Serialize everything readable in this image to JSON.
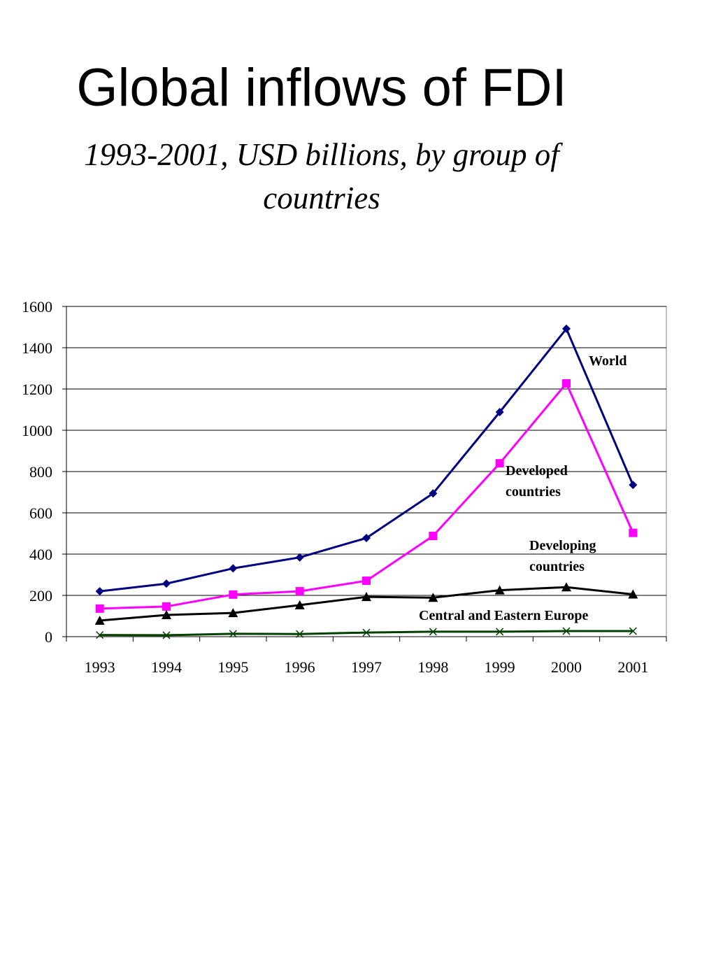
{
  "chart_data": {
    "type": "line",
    "title": "Global inflows of FDI",
    "subtitle": "1993-2001, USD billions, by group of countries",
    "xlabel": "",
    "ylabel": "",
    "x": [
      "1993",
      "1994",
      "1995",
      "1996",
      "1997",
      "1998",
      "1999",
      "2000",
      "2001"
    ],
    "ylim": [
      0,
      1600
    ],
    "yticks": [
      "0",
      "200",
      "400",
      "600",
      "800",
      "1000",
      "1200",
      "1400",
      "1600"
    ],
    "grid": "horizontal",
    "series": [
      {
        "name": "World",
        "values": [
          220,
          257,
          331,
          384,
          478,
          694,
          1088,
          1492,
          735
        ],
        "color": "#000080",
        "marker": "diamond"
      },
      {
        "name": "Developed countries",
        "values": [
          136,
          146,
          204,
          220,
          271,
          488,
          840,
          1227,
          503
        ],
        "color": "#ff00ff",
        "marker": "square"
      },
      {
        "name": "Developing countries",
        "values": [
          78,
          105,
          115,
          153,
          193,
          189,
          225,
          240,
          205
        ],
        "color": "#000000",
        "marker": "triangle"
      },
      {
        "name": "Central and Eastern Europe",
        "values": [
          8,
          7,
          14,
          13,
          20,
          24,
          24,
          27,
          27
        ],
        "color": "#004000",
        "marker": "x"
      }
    ]
  }
}
